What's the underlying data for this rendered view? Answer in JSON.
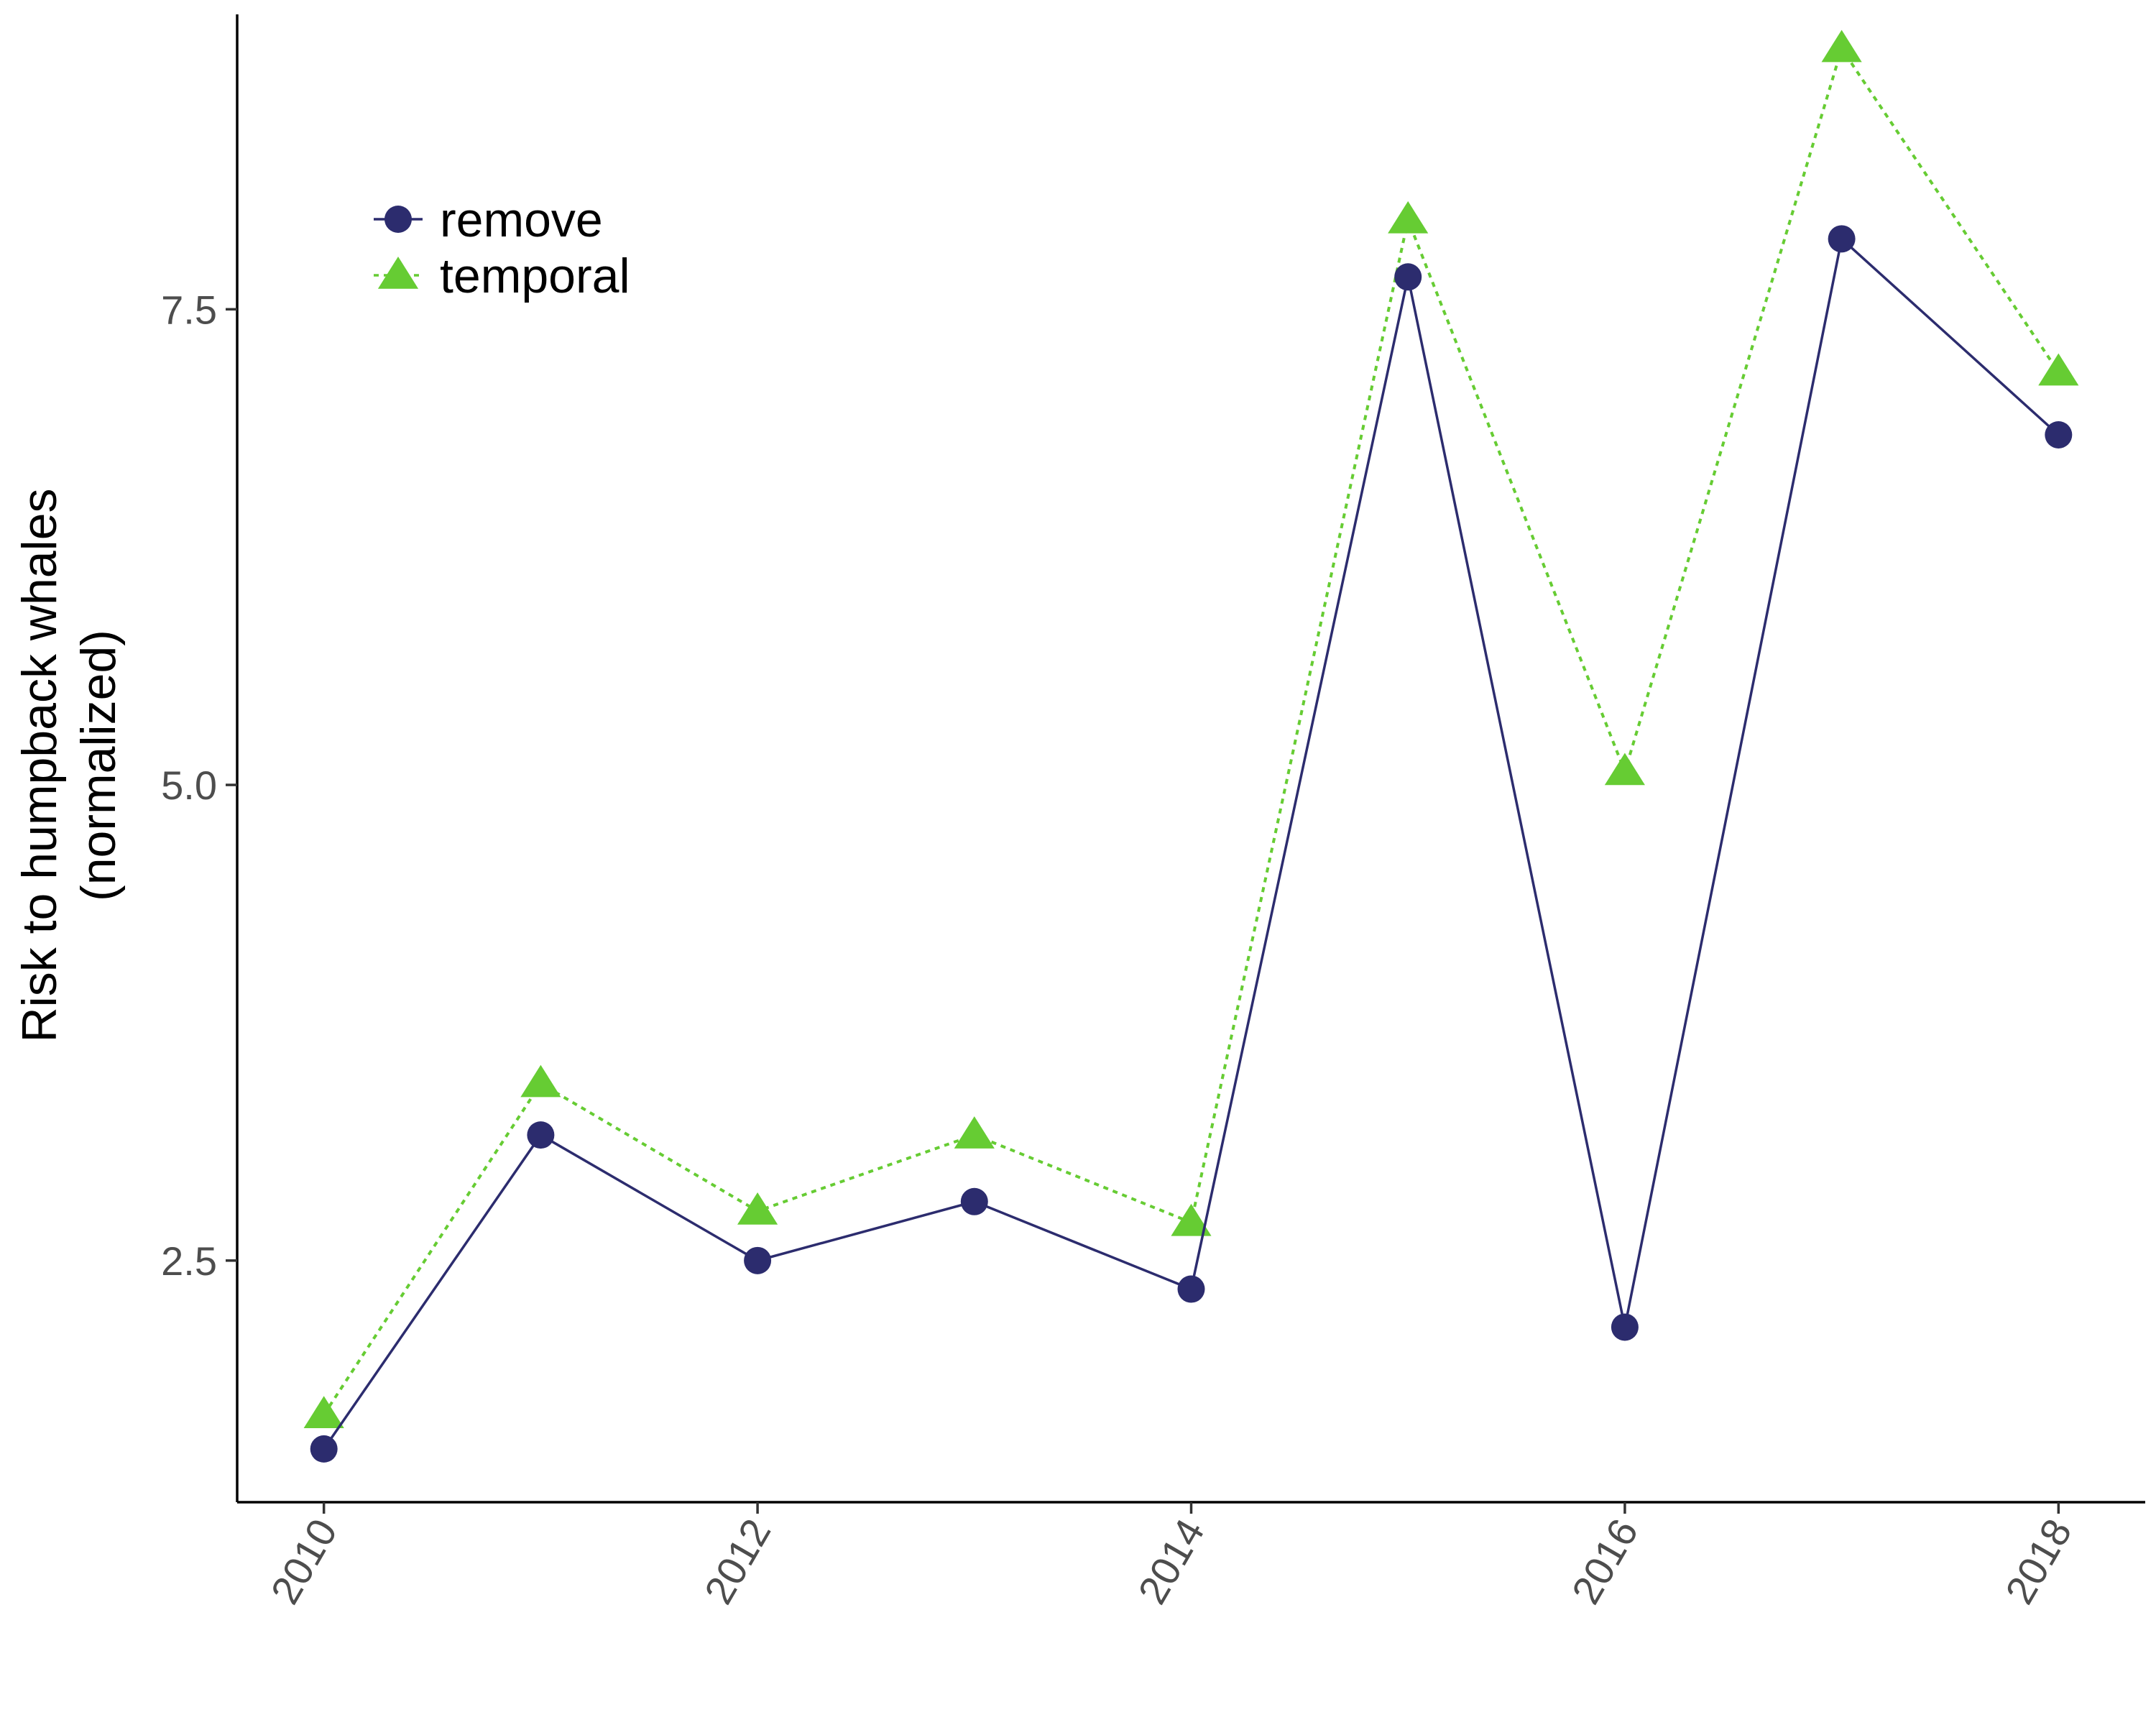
{
  "chart_data": {
    "type": "line",
    "title": "",
    "xlabel": "",
    "ylabel_lines": [
      "Risk to humpback whales",
      "(normalized)"
    ],
    "x": [
      2010,
      2011,
      2012,
      2013,
      2014,
      2015,
      2016,
      2017,
      2018
    ],
    "xlim": [
      2009.6,
      2018.4
    ],
    "ylim": [
      1.23,
      9.05
    ],
    "x_ticks": [
      2010,
      2012,
      2014,
      2016,
      2018
    ],
    "x_tick_labels": [
      "2010",
      "2012",
      "2014",
      "2016",
      "2018"
    ],
    "y_ticks": [
      2.5,
      5.0,
      7.5
    ],
    "y_tick_labels": [
      "2.5",
      "5.0",
      "7.5"
    ],
    "grid": false,
    "legend_position": "top-left",
    "series": [
      {
        "name": "remove",
        "values": [
          1.51,
          3.16,
          2.5,
          2.81,
          2.35,
          7.67,
          2.15,
          7.87,
          6.84
        ],
        "color": "#2c2c6e",
        "marker": "circle",
        "line_style": "solid"
      },
      {
        "name": "temporal",
        "values": [
          1.69,
          3.43,
          2.76,
          3.16,
          2.7,
          7.97,
          5.07,
          8.87,
          7.17
        ],
        "color": "#66cc33",
        "marker": "triangle",
        "line_style": "dotted"
      }
    ]
  }
}
